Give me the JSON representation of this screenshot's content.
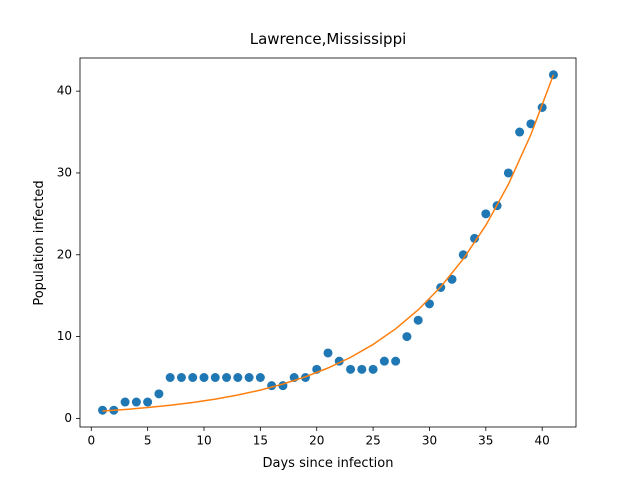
{
  "chart_data": {
    "type": "scatter",
    "title": "Lawrence,Mississippi",
    "x_label": "Days since infection",
    "y_label": "Population infected",
    "xlim": [
      -1,
      43
    ],
    "ylim": [
      -1.05,
      44.05
    ],
    "xticks": [
      0,
      5,
      10,
      15,
      20,
      25,
      30,
      35,
      40
    ],
    "yticks": [
      0,
      10,
      20,
      30,
      40
    ],
    "grid": false,
    "series": [
      {
        "type": "scatter",
        "color": "#1f77b4",
        "x": [
          1,
          2,
          3,
          4,
          5,
          6,
          7,
          8,
          9,
          10,
          11,
          12,
          13,
          14,
          15,
          16,
          17,
          18,
          19,
          20,
          21,
          22,
          23,
          24,
          25,
          26,
          27,
          28,
          29,
          30,
          31,
          32,
          33,
          34,
          35,
          36,
          37,
          38,
          39,
          40,
          41
        ],
        "values": [
          1,
          1,
          2,
          2,
          2,
          3,
          5,
          5,
          5,
          5,
          5,
          5,
          5,
          5,
          5,
          4,
          4,
          5,
          5,
          6,
          8,
          7,
          6,
          6,
          6,
          7,
          7,
          10,
          12,
          14,
          16,
          17,
          20,
          22,
          25,
          26,
          30,
          35,
          36,
          38,
          42
        ]
      },
      {
        "type": "line",
        "color": "#ff7f0e",
        "x": [
          1,
          3,
          5,
          7,
          9,
          11,
          13,
          15,
          17,
          19,
          21,
          23,
          25,
          27,
          29,
          31,
          33,
          35,
          37,
          39,
          41
        ],
        "values": [
          0.9,
          1.09,
          1.33,
          1.61,
          1.95,
          2.36,
          2.86,
          3.46,
          4.2,
          5.08,
          6.16,
          7.46,
          9.04,
          10.95,
          13.27,
          16.08,
          19.49,
          23.6,
          28.6,
          34.7,
          42.0
        ]
      }
    ]
  }
}
